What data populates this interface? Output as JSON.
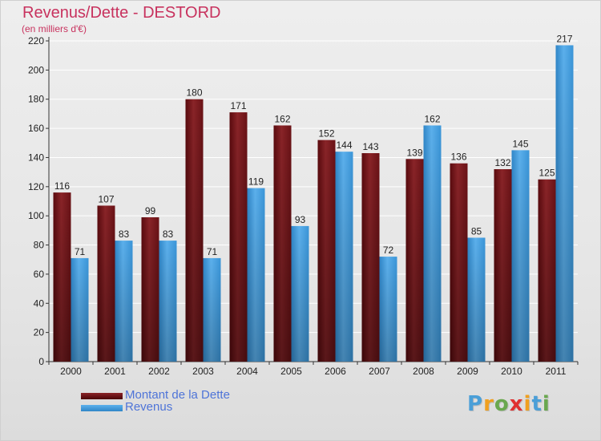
{
  "title": "Revenus/Dette - DESTORD",
  "subtitle": "(en milliers d'€)",
  "logo": {
    "text": "Proxiti",
    "letters": [
      {
        "ch": "P",
        "color": "#4a9fd8"
      },
      {
        "ch": "r",
        "color": "#f0a020"
      },
      {
        "ch": "o",
        "color": "#6aa84f"
      },
      {
        "ch": "x",
        "color": "#e03030"
      },
      {
        "ch": "i",
        "color": "#f0a020"
      },
      {
        "ch": "t",
        "color": "#4a9fd8"
      },
      {
        "ch": "i",
        "color": "#6aa84f"
      }
    ]
  },
  "chart_data": {
    "type": "bar",
    "title": "Revenus/Dette - DESTORD",
    "subtitle": "(en milliers d'€)",
    "categories": [
      "2000",
      "2001",
      "2002",
      "2003",
      "2004",
      "2005",
      "2006",
      "2007",
      "2008",
      "2009",
      "2010",
      "2011"
    ],
    "series": [
      {
        "name": "Montant de la Dette",
        "values": [
          116,
          107,
          99,
          180,
          171,
          162,
          152,
          143,
          139,
          136,
          132,
          125
        ],
        "color": "#7a1518"
      },
      {
        "name": "Revenus",
        "values": [
          71,
          83,
          83,
          71,
          119,
          93,
          144,
          72,
          162,
          85,
          145,
          217
        ],
        "color": "#3d9ee0"
      }
    ],
    "ylim": [
      0,
      220
    ],
    "yticks": [
      0,
      20,
      40,
      60,
      80,
      100,
      120,
      140,
      160,
      180,
      200,
      220
    ],
    "grid": true,
    "legend_position": "bottom-left"
  }
}
